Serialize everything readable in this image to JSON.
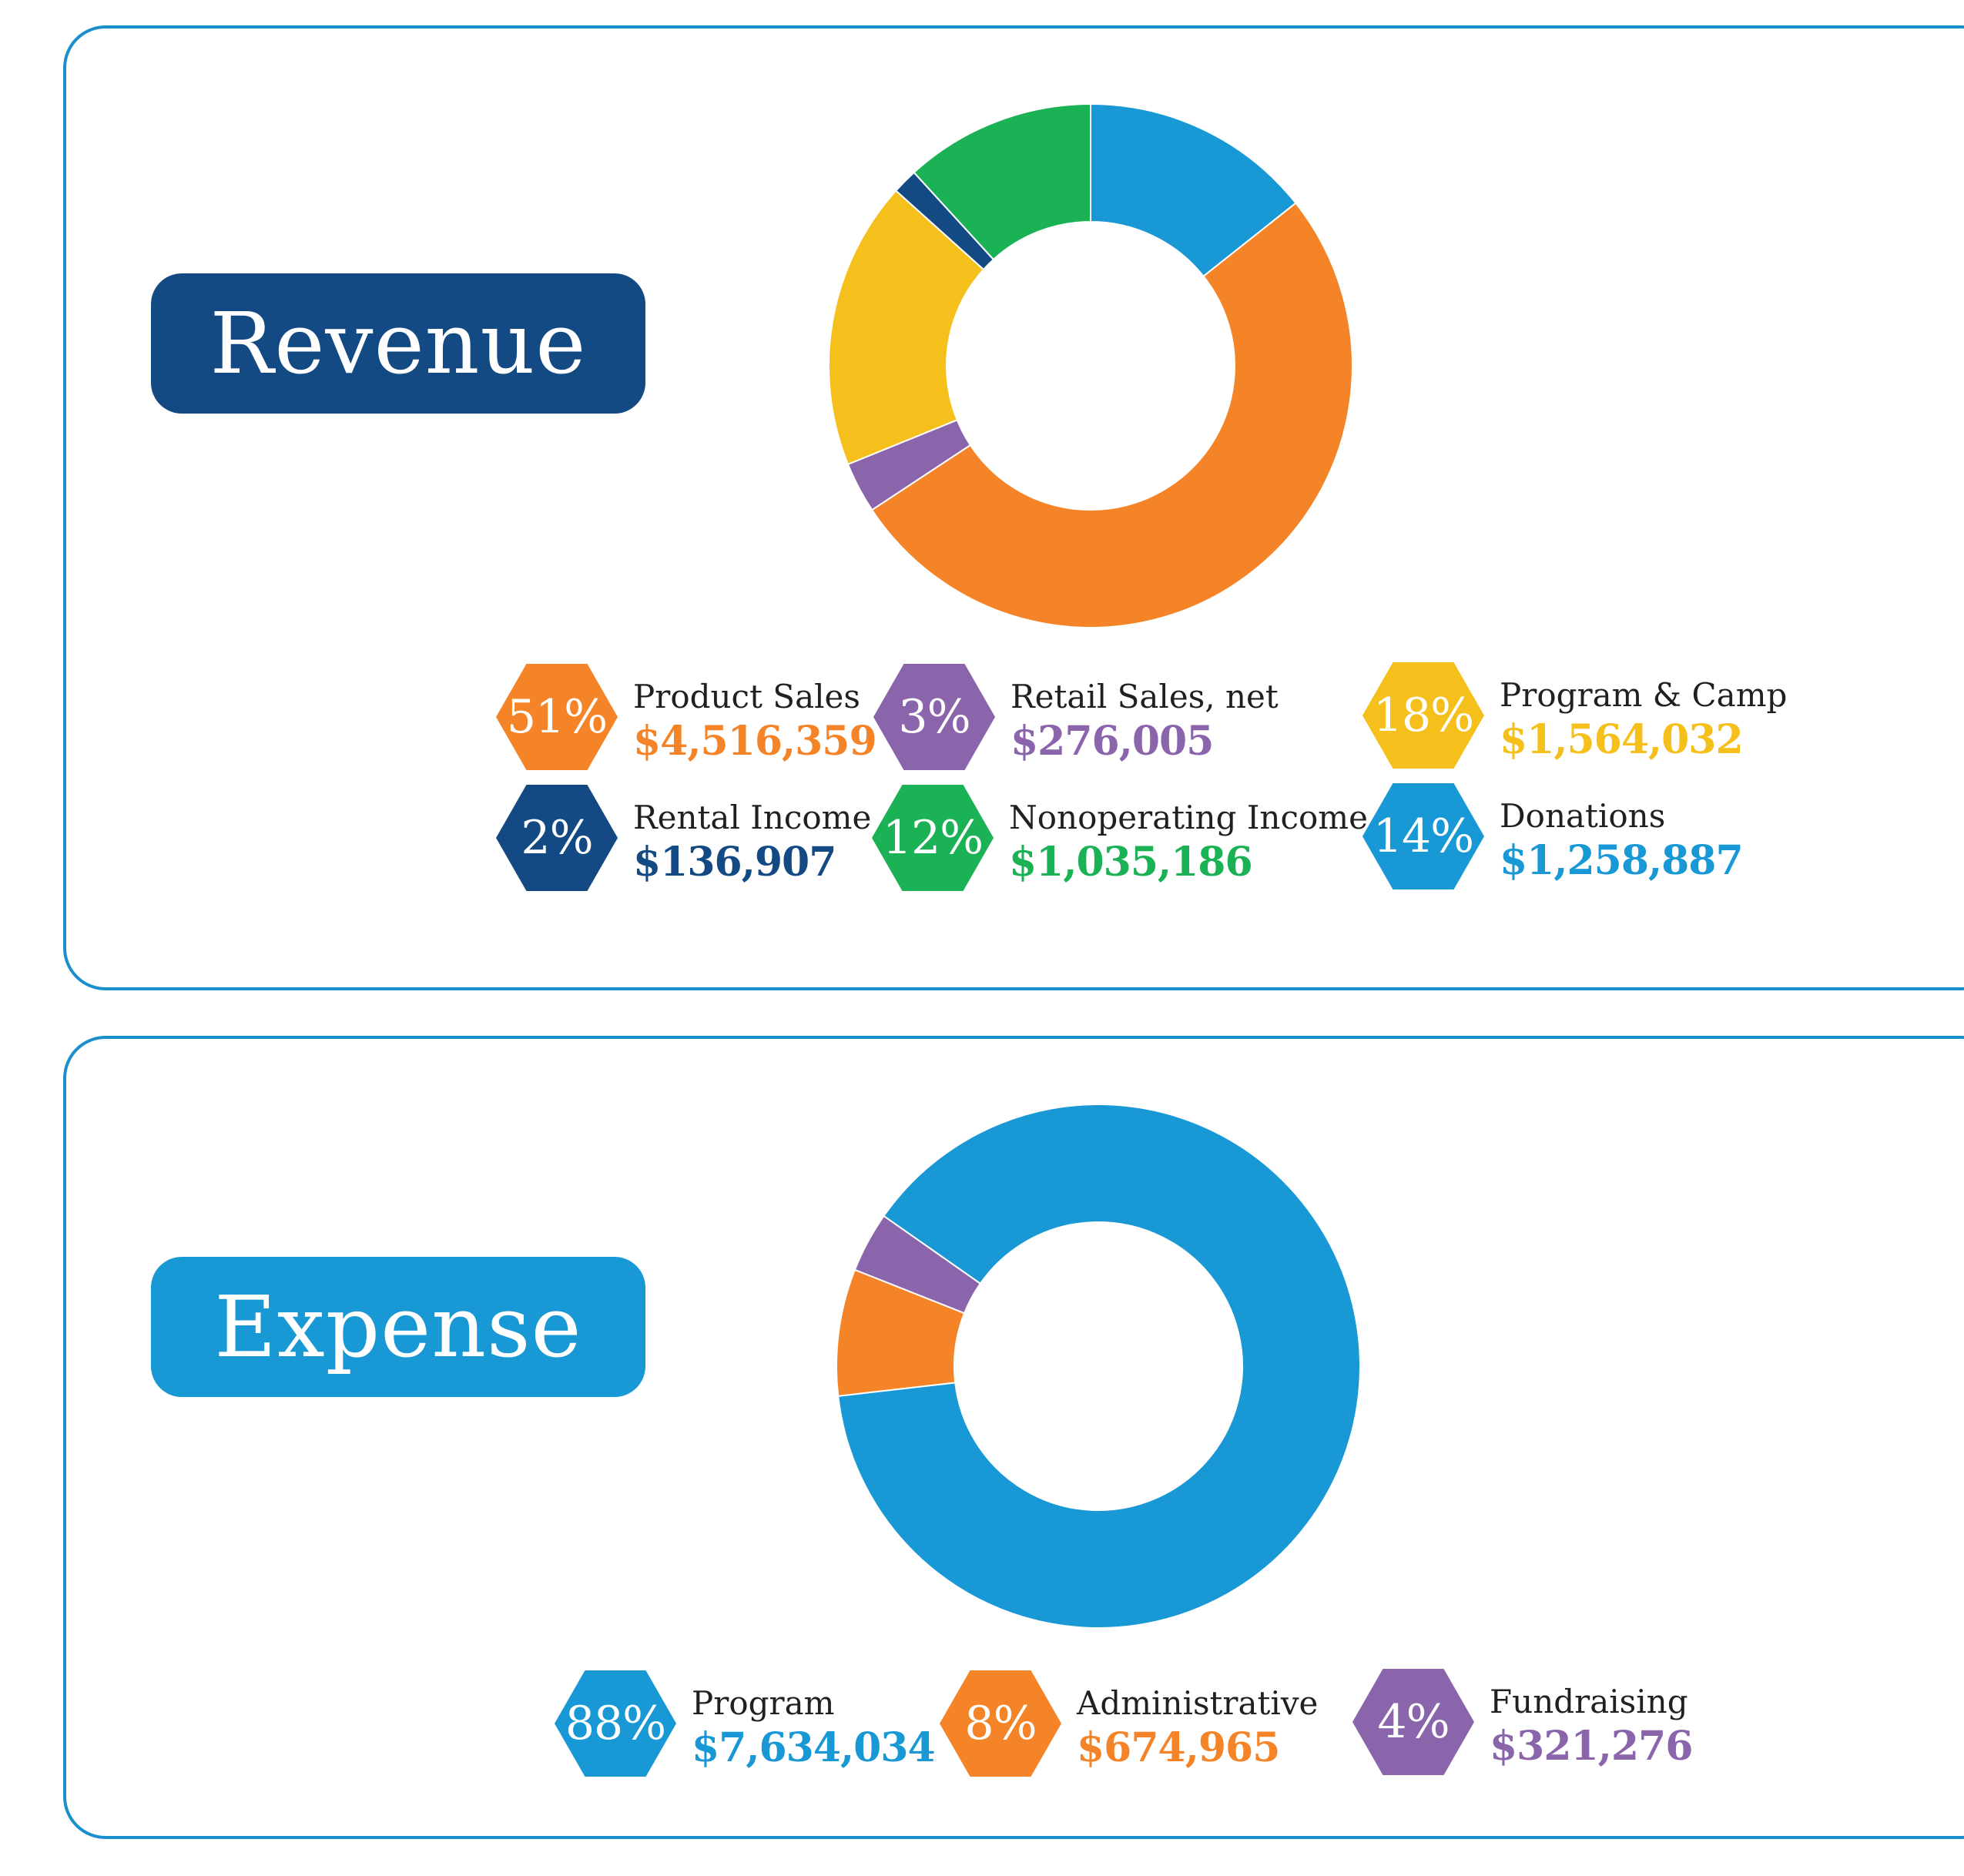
{
  "colors": {
    "orange": "#f48427",
    "purple": "#8b65ac",
    "yellow": "#f5c01c",
    "navy": "#134a84",
    "green": "#1bb155",
    "blue": "#1898d5",
    "border": "#1a8fcc"
  },
  "revenue": {
    "title": "Revenue",
    "items": [
      {
        "pct": "51%",
        "label": "Product Sales",
        "amount": "$4,516,359",
        "color": "#f48427"
      },
      {
        "pct": "3%",
        "label": "Retail Sales, net",
        "amount": "$276,005",
        "color": "#8b65ac"
      },
      {
        "pct": "18%",
        "label": "Program & Camp",
        "amount": "$1,564,032",
        "color": "#f5c01c"
      },
      {
        "pct": "2%",
        "label": "Rental Income",
        "amount": "$136,907",
        "color": "#134a84"
      },
      {
        "pct": "12%",
        "label": "Nonoperating Income",
        "amount": "$1,035,186",
        "color": "#1bb155"
      },
      {
        "pct": "14%",
        "label": "Donations",
        "amount": "$1,258,887",
        "color": "#1898d5"
      }
    ]
  },
  "expense": {
    "title": "Expense",
    "items": [
      {
        "pct": "88%",
        "label": "Program",
        "amount": "$7,634,034",
        "color": "#1898d5"
      },
      {
        "pct": "8%",
        "label": "Administrative",
        "amount": "$674,965",
        "color": "#f48427"
      },
      {
        "pct": "4%",
        "label": "Fundraising",
        "amount": "$321,276",
        "color": "#8b65ac"
      }
    ]
  },
  "chart_data": [
    {
      "type": "pie",
      "title": "Revenue",
      "categories": [
        "Donations",
        "Product Sales",
        "Retail Sales, net",
        "Program & Camp",
        "Rental Income",
        "Nonoperating Income"
      ],
      "values": [
        1258887,
        4516359,
        276005,
        1564032,
        136907,
        1035186
      ],
      "colors": [
        "#1898d5",
        "#f48427",
        "#8b65ac",
        "#f5c01c",
        "#134a84",
        "#1bb155"
      ],
      "start_angle_deg": 0,
      "direction": "clockwise",
      "hole_fraction": 0.55
    },
    {
      "type": "pie",
      "title": "Expense",
      "categories": [
        "Program",
        "Administrative",
        "Fundraising"
      ],
      "values": [
        7634034,
        674965,
        321276
      ],
      "colors": [
        "#1898d5",
        "#f48427",
        "#8b65ac"
      ],
      "start_angle_deg": -55,
      "direction": "clockwise",
      "hole_fraction": 0.55
    }
  ]
}
